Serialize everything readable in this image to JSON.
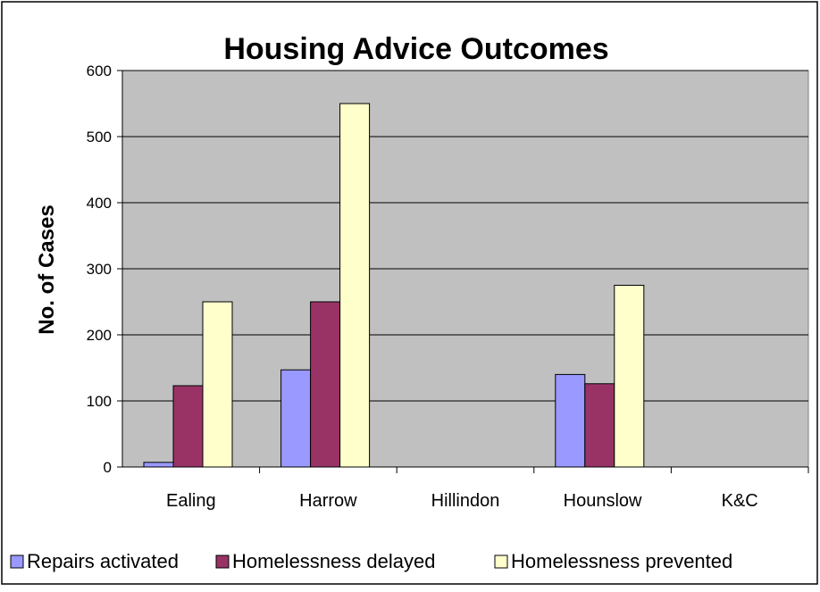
{
  "chart_data": {
    "type": "bar",
    "title": "Housing Advice Outcomes",
    "xlabel": "",
    "ylabel": "No. of Cases",
    "ylim": [
      0,
      600
    ],
    "yticks": [
      0,
      100,
      200,
      300,
      400,
      500,
      600
    ],
    "grid": true,
    "legend_position": "bottom",
    "categories": [
      "Ealing",
      "Harrow",
      "Hillindon",
      "Hounslow",
      "K&C"
    ],
    "series": [
      {
        "name": "Repairs activated",
        "color": "#9999ff",
        "values": [
          7,
          147,
          0,
          140,
          0
        ]
      },
      {
        "name": "Homelessness delayed",
        "color": "#993366",
        "values": [
          123,
          250,
          0,
          126,
          0
        ]
      },
      {
        "name": "Homelessness prevented",
        "color": "#ffffcc",
        "values": [
          250,
          550,
          0,
          275,
          0
        ]
      }
    ],
    "plot_background": "#c0c0c0"
  }
}
